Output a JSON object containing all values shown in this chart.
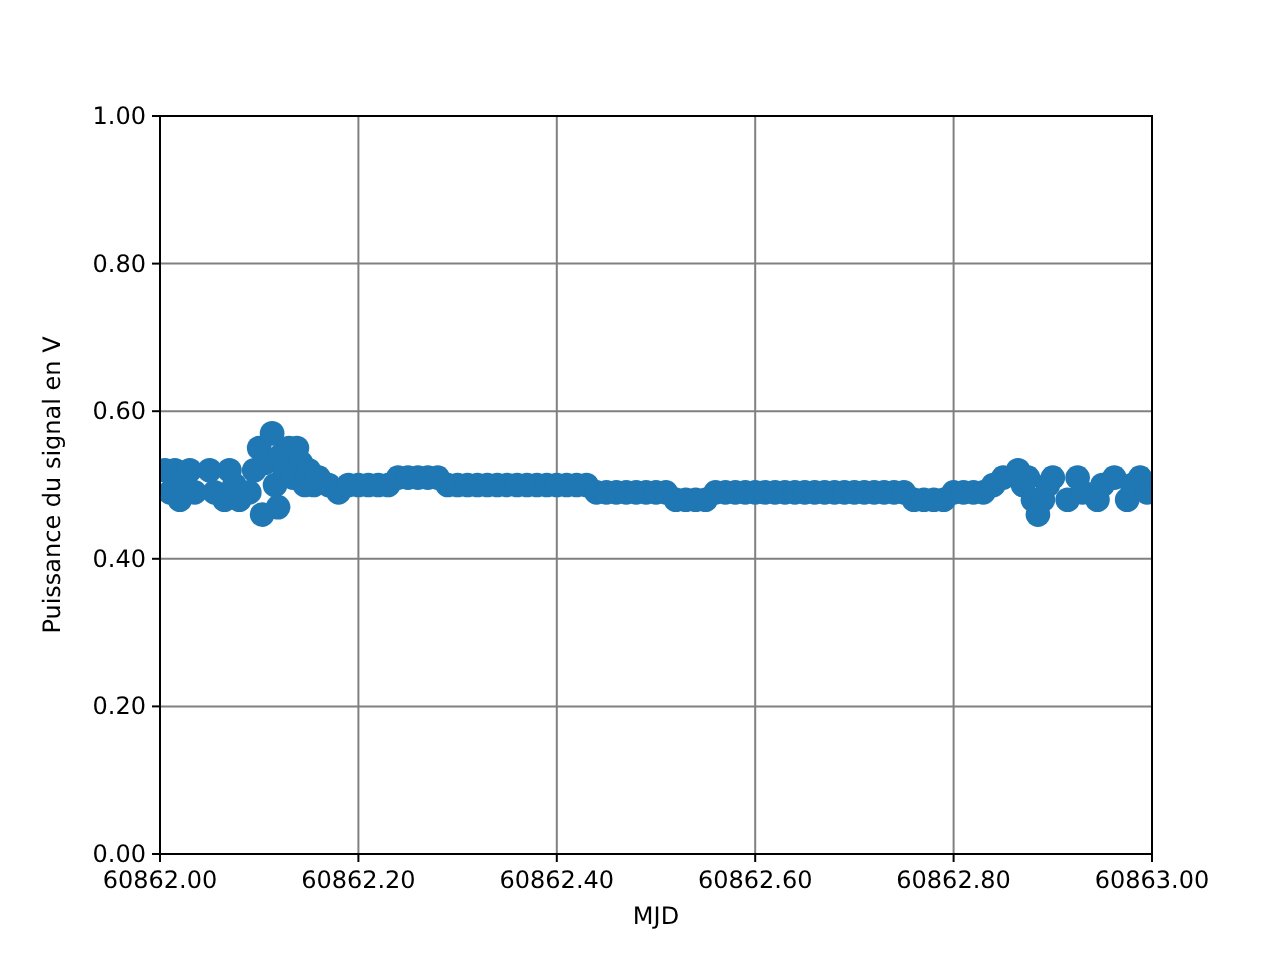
{
  "chart_data": {
    "type": "scatter",
    "xlabel": "MJD",
    "ylabel": "Puissance du signal en V",
    "xlim": [
      60862.0,
      60863.0
    ],
    "ylim": [
      0,
      1
    ],
    "xticks": [
      {
        "value": 60862.0,
        "label": "60862.00"
      },
      {
        "value": 60862.2,
        "label": "60862.20"
      },
      {
        "value": 60862.4,
        "label": "60862.40"
      },
      {
        "value": 60862.6,
        "label": "60862.60"
      },
      {
        "value": 60862.8,
        "label": "60862.80"
      },
      {
        "value": 60863.0,
        "label": "60863.00"
      }
    ],
    "yticks": [
      {
        "value": 0,
        "label": "0.00"
      },
      {
        "value": 0.2,
        "label": "0.20"
      },
      {
        "value": 0.4,
        "label": "0.40"
      },
      {
        "value": 0.6,
        "label": "0.60"
      },
      {
        "value": 0.8,
        "label": "0.80"
      },
      {
        "value": 1,
        "label": "1.00"
      }
    ],
    "grid": true,
    "marker": "circle",
    "series": [
      {
        "color": "#1f77b4",
        "x": [
          60862.005,
          60862.01,
          60862.015,
          60862.02,
          60862.025,
          60862.03,
          60862.035,
          60862.05,
          60862.055,
          60862.065,
          60862.07,
          60862.075,
          60862.08,
          60862.09,
          60862.095,
          60862.1,
          60862.103,
          60862.106,
          60862.113,
          60862.116,
          60862.119,
          60862.122,
          60862.126,
          60862.13,
          60862.134,
          60862.138,
          60862.142,
          60862.146,
          60862.15,
          60862.155,
          60862.16,
          60862.17,
          60862.18,
          60862.19,
          60862.2,
          60862.21,
          60862.22,
          60862.23,
          60862.24,
          60862.25,
          60862.26,
          60862.27,
          60862.28,
          60862.29,
          60862.3,
          60862.31,
          60862.32,
          60862.33,
          60862.34,
          60862.35,
          60862.36,
          60862.37,
          60862.38,
          60862.39,
          60862.4,
          60862.41,
          60862.42,
          60862.43,
          60862.44,
          60862.45,
          60862.46,
          60862.47,
          60862.48,
          60862.49,
          60862.5,
          60862.51,
          60862.52,
          60862.53,
          60862.54,
          60862.55,
          60862.56,
          60862.57,
          60862.58,
          60862.59,
          60862.6,
          60862.61,
          60862.62,
          60862.63,
          60862.64,
          60862.65,
          60862.66,
          60862.67,
          60862.68,
          60862.69,
          60862.7,
          60862.71,
          60862.72,
          60862.73,
          60862.74,
          60862.75,
          60862.76,
          60862.77,
          60862.78,
          60862.79,
          60862.8,
          60862.81,
          60862.82,
          60862.83,
          60862.84,
          60862.85,
          60862.865,
          60862.87,
          60862.875,
          60862.88,
          60862.885,
          60862.89,
          60862.895,
          60862.9,
          60862.915,
          60862.925,
          60862.93,
          60862.945,
          60862.95,
          60862.962,
          60862.975,
          60862.98,
          60862.988,
          60862.995
        ],
        "values": [
          0.52,
          0.49,
          0.52,
          0.48,
          0.51,
          0.52,
          0.49,
          0.52,
          0.49,
          0.48,
          0.52,
          0.5,
          0.48,
          0.49,
          0.52,
          0.55,
          0.46,
          0.53,
          0.57,
          0.5,
          0.47,
          0.54,
          0.52,
          0.55,
          0.51,
          0.55,
          0.53,
          0.5,
          0.52,
          0.5,
          0.51,
          0.5,
          0.49,
          0.5,
          0.5,
          0.5,
          0.5,
          0.5,
          0.51,
          0.51,
          0.51,
          0.51,
          0.51,
          0.5,
          0.5,
          0.5,
          0.5,
          0.5,
          0.5,
          0.5,
          0.5,
          0.5,
          0.5,
          0.5,
          0.5,
          0.5,
          0.5,
          0.5,
          0.49,
          0.49,
          0.49,
          0.49,
          0.49,
          0.49,
          0.49,
          0.49,
          0.48,
          0.48,
          0.48,
          0.48,
          0.49,
          0.49,
          0.49,
          0.49,
          0.49,
          0.49,
          0.49,
          0.49,
          0.49,
          0.49,
          0.49,
          0.49,
          0.49,
          0.49,
          0.49,
          0.49,
          0.49,
          0.49,
          0.49,
          0.49,
          0.48,
          0.48,
          0.48,
          0.48,
          0.49,
          0.49,
          0.49,
          0.49,
          0.5,
          0.51,
          0.52,
          0.5,
          0.51,
          0.48,
          0.46,
          0.48,
          0.5,
          0.51,
          0.48,
          0.51,
          0.49,
          0.48,
          0.5,
          0.51,
          0.48,
          0.5,
          0.51,
          0.49
        ]
      }
    ]
  }
}
